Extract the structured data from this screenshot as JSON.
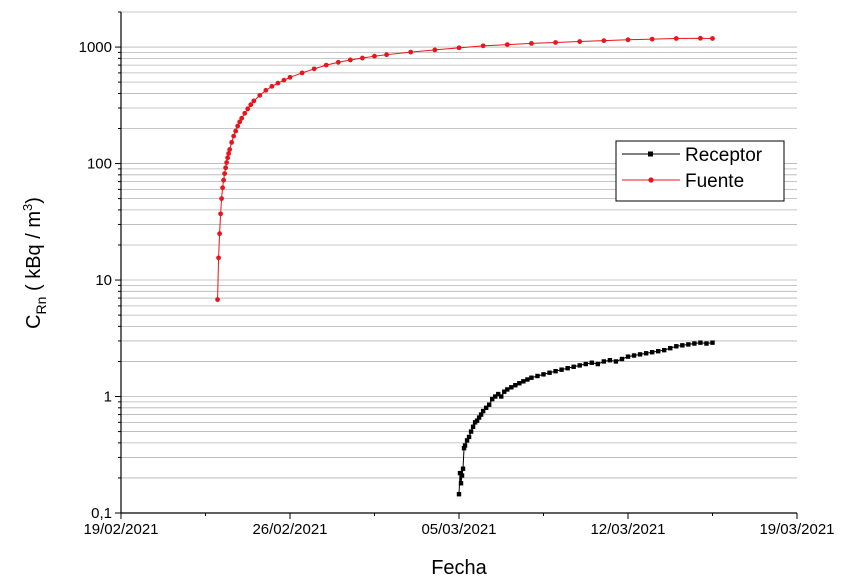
{
  "chart_data": {
    "type": "line",
    "title": "",
    "xlabel": "Fecha",
    "ylabel": {
      "main": "C",
      "sub": "Rn",
      "rest_before_sup": " ( kBq / m",
      "sup": "3",
      "rest_after_sup": ")"
    },
    "x_tick_labels": [
      "19/02/2021",
      "26/02/2021",
      "05/03/2021",
      "12/03/2021",
      "19/03/2021"
    ],
    "x_ticks_days": [
      0,
      7,
      14,
      21,
      28
    ],
    "xlim_days": [
      0,
      28
    ],
    "y_scale": "log",
    "ylim": [
      0.1,
      2000
    ],
    "y_tick_labels": [
      "0,1",
      "1",
      "10",
      "100",
      "1000"
    ],
    "y_ticks": [
      0.1,
      1,
      10,
      100,
      1000
    ],
    "grid": "horizontal minor and major",
    "legend_position": "right",
    "legend_entries": [
      "Receptor",
      "Fuente"
    ],
    "series": [
      {
        "name": "Fuente",
        "color": "#e8151b",
        "marker": "circle",
        "x_dates": [
          "23/02/2021 00:00",
          "23/02/2021 01:00",
          "23/02/2021 02:00",
          "23/02/2021 03:00",
          "23/02/2021 04:00",
          "23/02/2021 05:00",
          "23/02/2021 06:00",
          "23/02/2021 07:00",
          "23/02/2021 08:00",
          "23/02/2021 09:00",
          "23/02/2021 10:00",
          "23/02/2021 11:00",
          "23/02/2021 12:00",
          "23/02/2021 14:00",
          "23/02/2021 16:00",
          "23/02/2021 18:00",
          "23/02/2021 20:00",
          "23/02/2021 22:00",
          "24/02/2021 00:00",
          "24/02/2021 03:00",
          "24/02/2021 06:00",
          "24/02/2021 09:00",
          "24/02/2021 12:00",
          "24/02/2021 18:00",
          "25/02/2021 00:00",
          "25/02/2021 06:00",
          "25/02/2021 12:00",
          "25/02/2021 18:00",
          "26/02/2021 00:00",
          "26/02/2021 12:00",
          "27/02/2021 00:00",
          "27/02/2021 12:00",
          "28/02/2021 00:00",
          "28/02/2021 12:00",
          "01/03/2021 00:00",
          "01/03/2021 12:00",
          "02/03/2021 00:00",
          "03/03/2021 00:00",
          "04/03/2021 00:00",
          "05/03/2021 00:00",
          "06/03/2021 00:00",
          "07/03/2021 00:00",
          "08/03/2021 00:00",
          "09/03/2021 00:00",
          "10/03/2021 00:00",
          "11/03/2021 00:00",
          "12/03/2021 00:00",
          "13/03/2021 00:00",
          "14/03/2021 00:00",
          "15/03/2021 00:00",
          "15/03/2021 12:00"
        ],
        "y": [
          6.8,
          15.5,
          25,
          37,
          50,
          62,
          72,
          82,
          92,
          102,
          112,
          122,
          132,
          152,
          172,
          190,
          210,
          228,
          245,
          270,
          295,
          320,
          345,
          385,
          425,
          460,
          490,
          520,
          550,
          600,
          650,
          700,
          740,
          775,
          805,
          835,
          860,
          905,
          945,
          985,
          1025,
          1050,
          1075,
          1095,
          1115,
          1135,
          1155,
          1170,
          1185,
          1190,
          1185
        ]
      },
      {
        "name": "Receptor",
        "color": "#000000",
        "marker": "square",
        "x_dates": [
          "04/03/2021 23:59",
          "05/03/2021 01:00",
          "05/03/2021 02:00",
          "05/03/2021 03:00",
          "05/03/2021 04:00",
          "05/03/2021 05:00",
          "05/03/2021 06:00",
          "05/03/2021 08:00",
          "05/03/2021 10:00",
          "05/03/2021 12:00",
          "05/03/2021 14:00",
          "05/03/2021 16:00",
          "05/03/2021 18:00",
          "05/03/2021 20:00",
          "05/03/2021 22:00",
          "06/03/2021 00:00",
          "06/03/2021 03:00",
          "06/03/2021 06:00",
          "06/03/2021 09:00",
          "06/03/2021 12:00",
          "06/03/2021 15:00",
          "06/03/2021 18:00",
          "06/03/2021 21:00",
          "07/03/2021 00:00",
          "07/03/2021 04:00",
          "07/03/2021 08:00",
          "07/03/2021 12:00",
          "07/03/2021 16:00",
          "07/03/2021 20:00",
          "08/03/2021 00:00",
          "08/03/2021 06:00",
          "08/03/2021 12:00",
          "08/03/2021 18:00",
          "09/03/2021 00:00",
          "09/03/2021 06:00",
          "09/03/2021 12:00",
          "09/03/2021 18:00",
          "10/03/2021 00:00",
          "10/03/2021 06:00",
          "10/03/2021 12:00",
          "10/03/2021 18:00",
          "11/03/2021 00:00",
          "11/03/2021 06:00",
          "11/03/2021 12:00",
          "11/03/2021 18:00",
          "12/03/2021 00:00",
          "12/03/2021 06:00",
          "12/03/2021 12:00",
          "12/03/2021 18:00",
          "13/03/2021 00:00",
          "13/03/2021 06:00",
          "13/03/2021 12:00",
          "13/03/2021 18:00",
          "14/03/2021 00:00",
          "14/03/2021 06:00",
          "14/03/2021 12:00",
          "14/03/2021 18:00",
          "15/03/2021 00:00",
          "15/03/2021 06:00",
          "15/03/2021 12:00"
        ],
        "y": [
          0.145,
          0.22,
          0.18,
          0.21,
          0.24,
          0.36,
          0.38,
          0.42,
          0.45,
          0.5,
          0.55,
          0.6,
          0.62,
          0.66,
          0.7,
          0.75,
          0.8,
          0.85,
          0.95,
          1.0,
          1.05,
          1.0,
          1.1,
          1.15,
          1.2,
          1.25,
          1.3,
          1.35,
          1.4,
          1.45,
          1.5,
          1.55,
          1.6,
          1.65,
          1.7,
          1.75,
          1.8,
          1.85,
          1.9,
          1.95,
          1.9,
          2.0,
          2.05,
          2.0,
          2.1,
          2.2,
          2.25,
          2.3,
          2.35,
          2.4,
          2.45,
          2.5,
          2.6,
          2.7,
          2.75,
          2.8,
          2.85,
          2.9,
          2.85,
          2.9
        ]
      }
    ]
  }
}
